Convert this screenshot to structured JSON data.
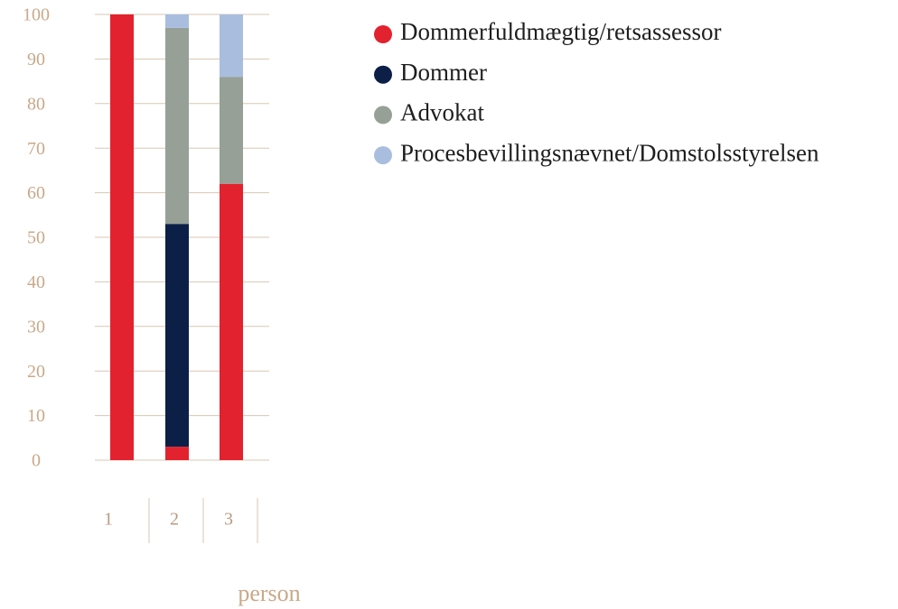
{
  "chart_data": {
    "type": "stacked_bar",
    "x_label": "person",
    "categories": [
      "1",
      "2",
      "3"
    ],
    "series": [
      {
        "name": "Dommerfuldmægtig/retsassessor",
        "color": "#e2222e",
        "values": [
          100,
          3,
          62
        ]
      },
      {
        "name": "Dommer",
        "color": "#0c1f47",
        "values": [
          0,
          50,
          0
        ]
      },
      {
        "name": "Advokat",
        "color": "#96a096",
        "values": [
          0,
          44,
          24
        ]
      },
      {
        "name": "Procesbevillingsnævnet/Domstolsstyrelsen",
        "color": "#a9bddf",
        "values": [
          0,
          3,
          14
        ]
      }
    ],
    "ylim": [
      0,
      100
    ],
    "yticks": [
      0,
      10,
      20,
      30,
      40,
      50,
      60,
      70,
      80,
      90,
      100
    ],
    "grid": true
  }
}
